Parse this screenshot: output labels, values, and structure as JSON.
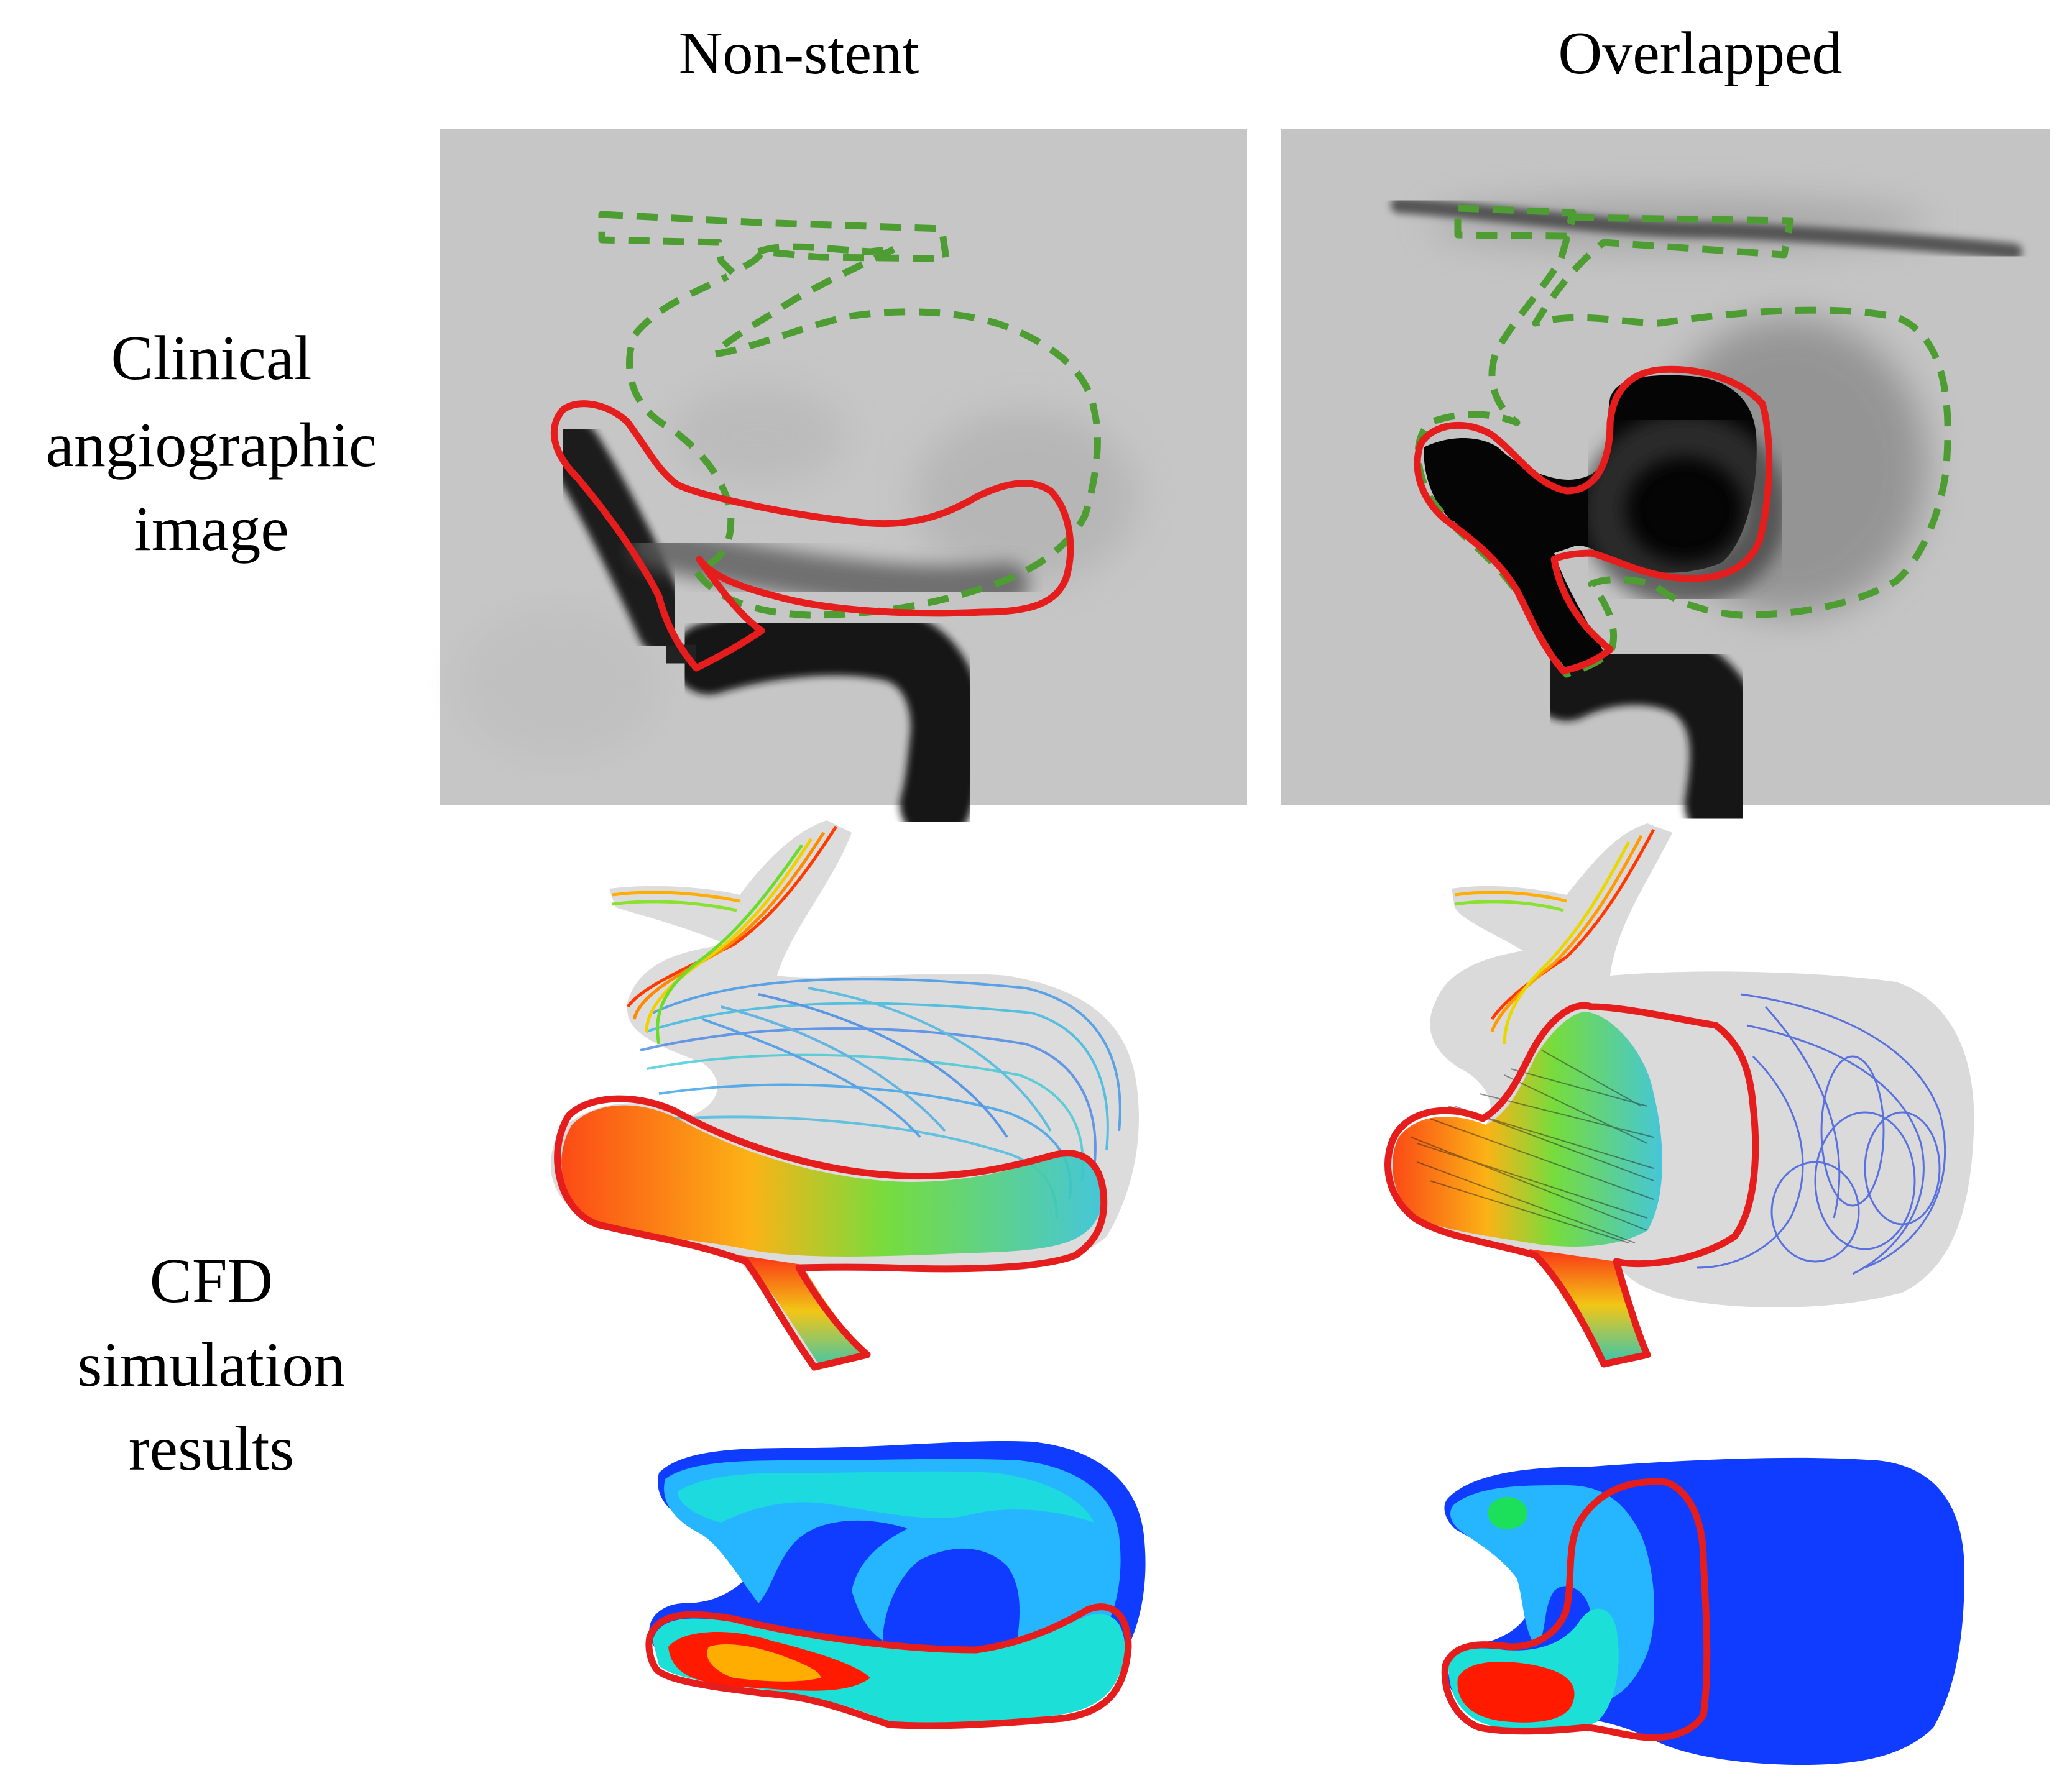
{
  "columns": [
    "Non-stent",
    "Overlapped"
  ],
  "rows": {
    "clinical": [
      "Clinical",
      "angiographic",
      "image"
    ],
    "cfd": [
      "CFD",
      "simulation",
      "results"
    ]
  },
  "colors": {
    "stent_outline": "#e51d1d",
    "aneurysm_outline": "#4d9d33",
    "angio_background": "#c4c4c4",
    "contrast": "#141414",
    "flow_fast": "#ff2a00",
    "flow_mid": "#2edc4a",
    "flow_slow": "#2c7fe6",
    "contour_low": "#0f3cff",
    "contour_mid": "#20c8ff",
    "contour_high": "#ff1a00"
  }
}
